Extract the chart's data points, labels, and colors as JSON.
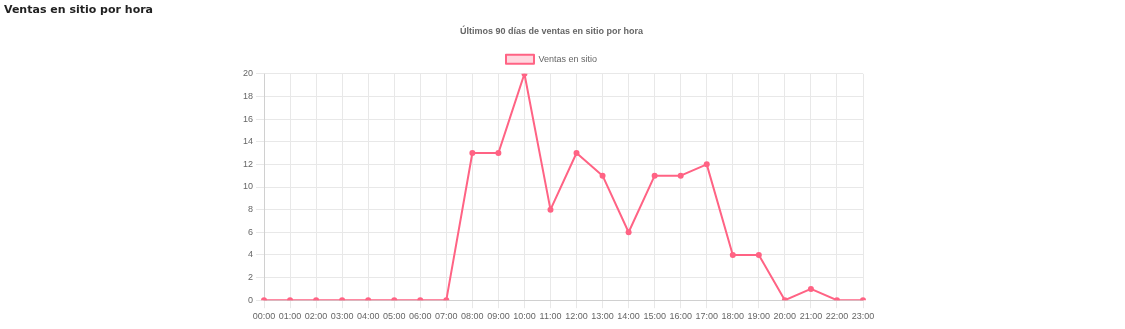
{
  "chart_data": {
    "type": "line",
    "title": "Ventas en sitio por hora",
    "subtitle": "Últimos 90 días de ventas en sitio por hora",
    "categories": [
      "00:00",
      "01:00",
      "02:00",
      "03:00",
      "04:00",
      "05:00",
      "06:00",
      "07:00",
      "08:00",
      "09:00",
      "10:00",
      "11:00",
      "12:00",
      "13:00",
      "14:00",
      "15:00",
      "16:00",
      "17:00",
      "18:00",
      "19:00",
      "20:00",
      "21:00",
      "22:00",
      "23:00"
    ],
    "series": [
      {
        "name": "Ventas en sitio",
        "color": "#ff6384",
        "values": [
          0,
          0,
          0,
          0,
          0,
          0,
          0,
          0,
          13,
          13,
          20,
          8,
          13,
          11,
          6,
          11,
          11,
          12,
          4,
          4,
          0,
          1,
          0,
          0
        ]
      }
    ],
    "ylim": [
      0,
      20
    ],
    "yticks": [
      0,
      2,
      4,
      6,
      8,
      10,
      12,
      14,
      16,
      18,
      20
    ],
    "grid": true,
    "legend": "top",
    "marker": "circle",
    "line_style": "solid"
  }
}
